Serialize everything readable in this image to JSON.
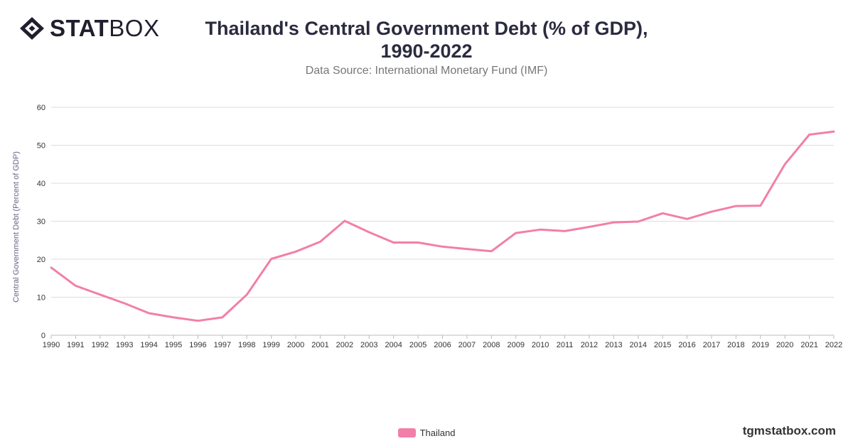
{
  "logo": {
    "bold": "STAT",
    "light": "BOX",
    "icon": "diamond-logo-icon"
  },
  "header": {
    "title_line1": "Thailand's Central Government Debt (% of GDP),",
    "title_line2": "1990-2022",
    "subtitle": "Data Source: International Monetary Fund (IMF)"
  },
  "watermark": "tgmstatbox.com",
  "colors": {
    "series": "#f27fa8",
    "grid": "#dddddd",
    "axis_text": "#333333",
    "ylabel": "#666688"
  },
  "chart_data": {
    "type": "line",
    "title": "Thailand's Central Government Debt (% of GDP), 1990-2022",
    "subtitle": "Data Source: International Monetary Fund (IMF)",
    "xlabel": "",
    "ylabel": "Central Government Debt (Percent of GDP)",
    "ylim": [
      0,
      60
    ],
    "yticks": [
      "0",
      "10",
      "20",
      "30",
      "40",
      "50",
      "60"
    ],
    "grid": true,
    "legend_position": "bottom-center",
    "x": [
      "1990",
      "1991",
      "1992",
      "1993",
      "1994",
      "1995",
      "1996",
      "1997",
      "1998",
      "1999",
      "2000",
      "2001",
      "2002",
      "2003",
      "2004",
      "2005",
      "2006",
      "2007",
      "2008",
      "2009",
      "2010",
      "2011",
      "2012",
      "2013",
      "2014",
      "2015",
      "2016",
      "2017",
      "2018",
      "2019",
      "2020",
      "2021",
      "2022"
    ],
    "series": [
      {
        "name": "Thailand",
        "values": [
          17.8,
          13.0,
          10.7,
          8.4,
          5.8,
          4.7,
          3.8,
          4.7,
          10.7,
          20.1,
          22.0,
          24.6,
          30.1,
          27.1,
          24.4,
          24.4,
          23.3,
          22.7,
          22.1,
          26.9,
          27.8,
          27.4,
          28.5,
          29.7,
          29.9,
          32.1,
          30.6,
          32.5,
          34.0,
          34.1,
          45.0,
          52.8,
          53.6
        ]
      }
    ]
  }
}
